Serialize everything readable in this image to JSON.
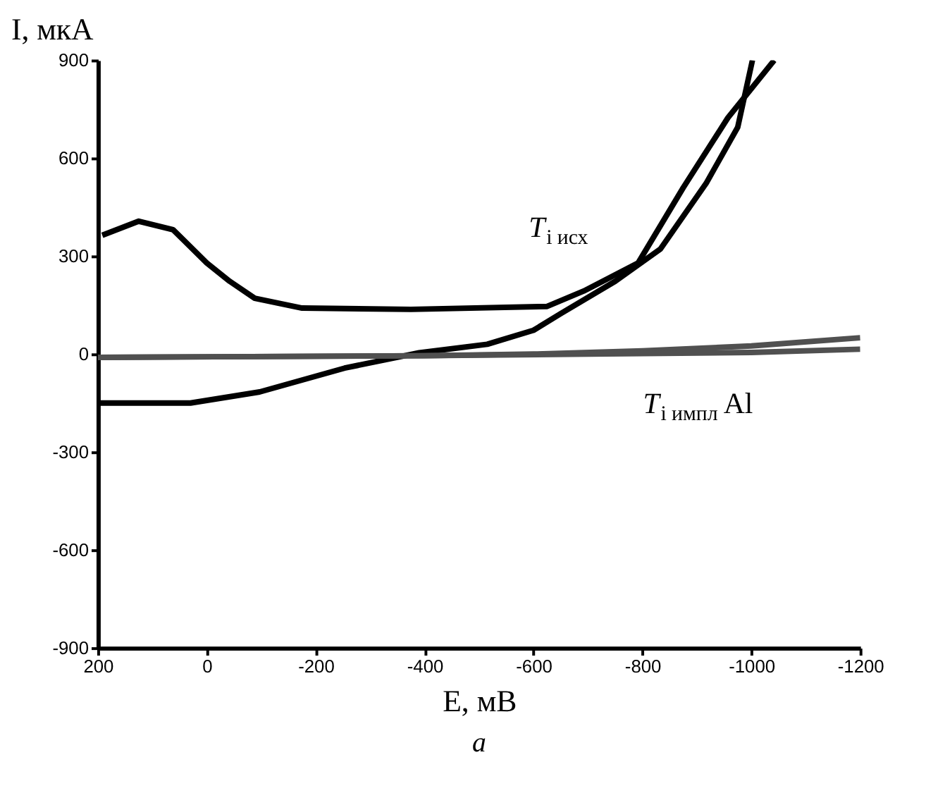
{
  "chart_data": {
    "type": "line",
    "xlabel": "E, мВ",
    "ylabel": "I, мкА",
    "xlim": [
      200,
      -1200
    ],
    "ylim": [
      -900,
      900
    ],
    "xticks": [
      200,
      0,
      -200,
      -400,
      -600,
      -800,
      -1000,
      -1200
    ],
    "yticks": [
      -900,
      -600,
      -300,
      0,
      300,
      600,
      900
    ],
    "grid": false,
    "marker": "none",
    "line_style": "solid",
    "series": [
      {
        "color": "#000000",
        "x": [
          192,
          125,
          62,
          0,
          -42,
          -88,
          -175,
          -375,
          -625,
          -692,
          -792,
          -875,
          -957,
          -1042
        ],
        "values": [
          364,
          407,
          381,
          279,
          223,
          171,
          141,
          137,
          146,
          193,
          279,
          510,
          724,
          900
        ]
      },
      {
        "color": "#000000",
        "x": [
          197,
          30,
          -97,
          -253,
          -390,
          -515,
          -600,
          -650,
          -750,
          -833,
          -917,
          -975,
          -1002
        ],
        "values": [
          -150,
          -150,
          -116,
          -43,
          4,
          30,
          73,
          124,
          223,
          322,
          523,
          695,
          900
        ]
      },
      {
        "color": "#505050",
        "x": [
          200,
          -400,
          -600,
          -800,
          -1000,
          -1200
        ],
        "values": [
          -10,
          -5,
          0,
          10,
          25,
          50
        ]
      },
      {
        "color": "#505050",
        "x": [
          200,
          -400,
          -700,
          -1000,
          -1200
        ],
        "values": [
          -10,
          -5,
          0,
          5,
          15
        ]
      }
    ],
    "annotations": [
      "T$_{i исх}$",
      "T$_{i импл}$Al",
      "а"
    ]
  }
}
